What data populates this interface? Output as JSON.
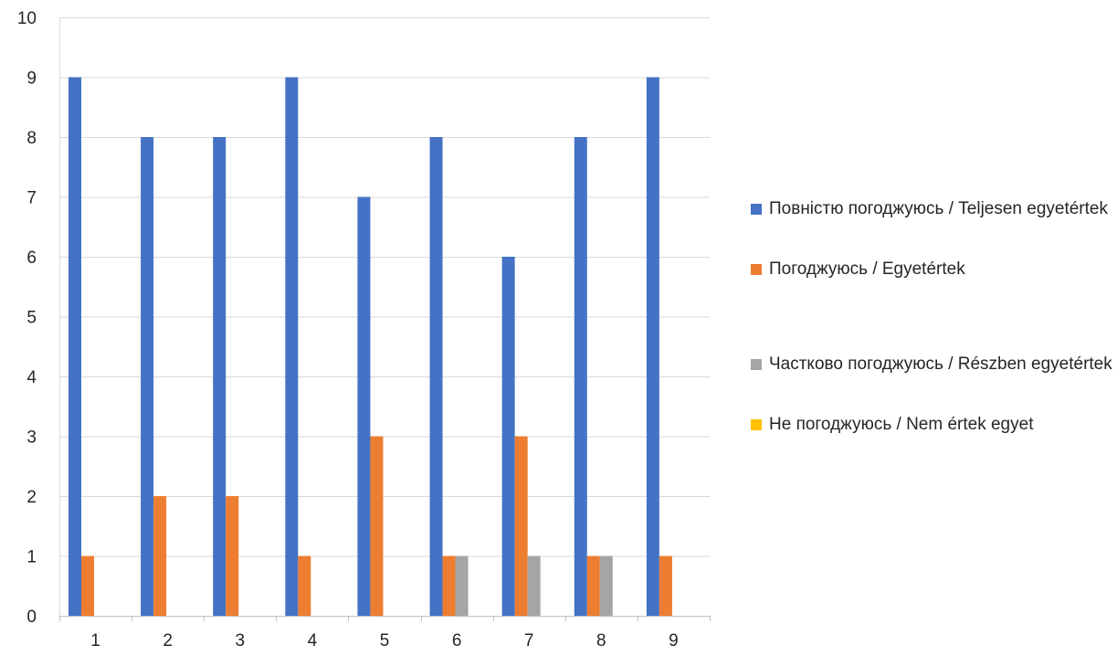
{
  "chart_data": {
    "type": "bar",
    "title": "",
    "xlabel": "",
    "ylabel": "",
    "ylim": [
      0,
      10
    ],
    "yticks": [
      "0",
      "1",
      "2",
      "3",
      "4",
      "5",
      "6",
      "7",
      "8",
      "9",
      "10"
    ],
    "categories": [
      "1",
      "2",
      "3",
      "4",
      "5",
      "6",
      "7",
      "8",
      "9"
    ],
    "grid": "horizontal",
    "legend_position": "right",
    "data_labels": false,
    "series": [
      {
        "name": "Повністю погоджуюсь / Teljesen egyetértek",
        "color": "#4472C4",
        "values": [
          9,
          8,
          8,
          9,
          7,
          8,
          6,
          8,
          9
        ]
      },
      {
        "name": "Погоджуюсь / Egyetértek",
        "color": "#ED7D31",
        "values": [
          1,
          2,
          2,
          1,
          3,
          1,
          3,
          1,
          1
        ]
      },
      {
        "name": "Частково погоджуюсь / Részben egyetértek",
        "color": "#A5A5A5",
        "values": [
          0,
          0,
          0,
          0,
          0,
          1,
          1,
          1,
          0
        ]
      },
      {
        "name": "Не погоджуюсь / Nem értek egyet",
        "color": "#FFC000",
        "values": [
          0,
          0,
          0,
          0,
          0,
          0,
          0,
          0,
          0
        ]
      }
    ]
  }
}
